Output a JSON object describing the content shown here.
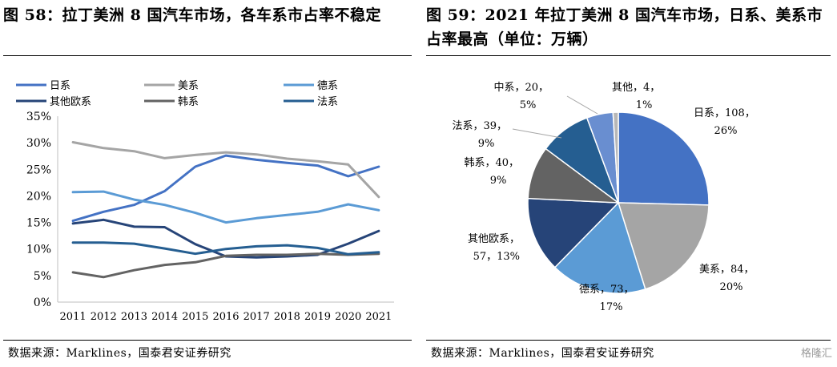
{
  "left": {
    "title": "图 58：拉丁美洲 8 国汽车市场，各车系市占率不稳定",
    "source": "数据来源：Marklines，国泰君安证券研究"
  },
  "right": {
    "title": "图 59：2021 年拉丁美洲 8 国汽车市场，日系、美系市占率最高（单位：万辆）",
    "source": "数据来源：Marklines，国泰君安证券研究"
  },
  "watermark": "格隆汇",
  "chart_data": [
    {
      "type": "line",
      "x": [
        2011,
        2012,
        2013,
        2014,
        2015,
        2016,
        2017,
        2018,
        2019,
        2020,
        2021
      ],
      "ylim": [
        0,
        35
      ],
      "y_ticks": [
        "0%",
        "5%",
        "10%",
        "15%",
        "20%",
        "25%",
        "30%",
        "35%"
      ],
      "y_tick_values": [
        0,
        5,
        10,
        15,
        20,
        25,
        30,
        35
      ],
      "legend_position": "top",
      "grid": false,
      "series": [
        {
          "name": "日系",
          "color": "#4472C4",
          "values": [
            15.3,
            17.0,
            18.3,
            20.9,
            25.5,
            27.6,
            26.8,
            26.2,
            25.7,
            23.7,
            25.5
          ]
        },
        {
          "name": "美系",
          "color": "#A5A5A5",
          "values": [
            30.1,
            29.0,
            28.4,
            27.1,
            27.7,
            28.2,
            27.8,
            27.0,
            26.5,
            25.9,
            19.8
          ]
        },
        {
          "name": "德系",
          "color": "#5B9BD5",
          "values": [
            20.7,
            20.8,
            19.3,
            18.3,
            16.8,
            15.0,
            15.8,
            16.4,
            17.0,
            18.4,
            17.3
          ]
        },
        {
          "name": "其他欧系",
          "color": "#264478",
          "values": [
            14.8,
            15.5,
            14.2,
            14.1,
            10.9,
            8.6,
            8.4,
            8.6,
            8.9,
            11.0,
            13.4
          ]
        },
        {
          "name": "韩系",
          "color": "#636363",
          "values": [
            5.6,
            4.7,
            6.0,
            7.0,
            7.5,
            8.7,
            8.9,
            8.9,
            9.1,
            8.9,
            9.1
          ]
        },
        {
          "name": "法系",
          "color": "#255E91",
          "values": [
            11.2,
            11.2,
            11.0,
            10.1,
            9.1,
            10.0,
            10.5,
            10.7,
            10.2,
            9.0,
            9.4
          ]
        }
      ]
    },
    {
      "type": "pie",
      "unit": "万辆",
      "slices": [
        {
          "name": "日系",
          "value": 108,
          "percent": "26%",
          "color": "#4472C4"
        },
        {
          "name": "美系",
          "value": 84,
          "percent": "20%",
          "color": "#A5A5A5"
        },
        {
          "name": "德系",
          "value": 73,
          "percent": "17%",
          "color": "#5B9BD5"
        },
        {
          "name": "其他欧系",
          "value": 57,
          "percent": "13%",
          "color": "#264478"
        },
        {
          "name": "韩系",
          "value": 40,
          "percent": "9%",
          "color": "#636363"
        },
        {
          "name": "法系",
          "value": 39,
          "percent": "9%",
          "color": "#255E91"
        },
        {
          "name": "中系",
          "value": 20,
          "percent": "5%",
          "color": "#698ED0"
        },
        {
          "name": "其他",
          "value": 4,
          "percent": "1%",
          "color": "#B7B7B7"
        }
      ]
    }
  ]
}
